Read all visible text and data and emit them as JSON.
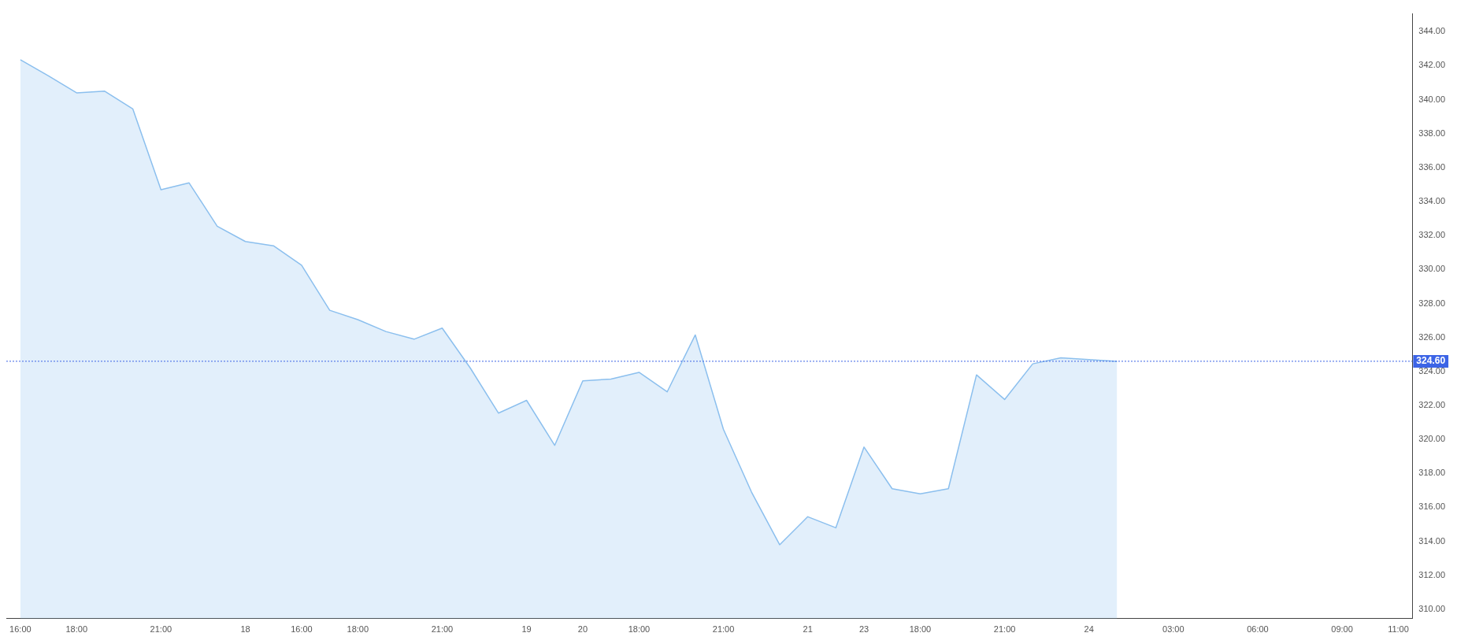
{
  "chart_data": {
    "type": "area",
    "categories": [
      "16:00",
      null,
      "18:00",
      null,
      null,
      "21:00",
      null,
      null,
      "18",
      null,
      "16:00",
      null,
      "18:00",
      null,
      null,
      "21:00",
      null,
      null,
      "19",
      null,
      "20",
      null,
      "18:00",
      null,
      null,
      "21:00",
      null,
      null,
      "21",
      null,
      "23",
      null,
      "18:00",
      null,
      null,
      "21:00",
      null,
      null,
      "24",
      null,
      null,
      "03:00",
      null,
      null,
      "06:00",
      null,
      null,
      "09:00",
      null,
      "11:00"
    ],
    "series": [
      {
        "color": "#8bbfee",
        "values": [
          342.35,
          341.4,
          340.4,
          340.5,
          339.45,
          334.7,
          335.1,
          332.55,
          331.65,
          331.4,
          330.25,
          327.6,
          327.05,
          326.35,
          325.9,
          326.55,
          324.2,
          321.55,
          322.3,
          319.65,
          323.45,
          323.55,
          323.95,
          322.8,
          326.15,
          320.6,
          316.9,
          313.8,
          315.45,
          314.8,
          319.55,
          317.1,
          316.8,
          317.1,
          323.8,
          322.35,
          324.45,
          324.8,
          324.7,
          324.6,
          null,
          null,
          null,
          null,
          null,
          null,
          null,
          null,
          null,
          null
        ]
      }
    ],
    "ylim": [
      309.45,
      345.05
    ],
    "yticks": [
      {
        "value": 310,
        "label": "310.00"
      },
      {
        "value": 312,
        "label": "312.00"
      },
      {
        "value": 314,
        "label": "314.00"
      },
      {
        "value": 316,
        "label": "316.00"
      },
      {
        "value": 318,
        "label": "318.00"
      },
      {
        "value": 320,
        "label": "320.00"
      },
      {
        "value": 322,
        "label": "322.00"
      },
      {
        "value": 324,
        "label": "324.00"
      },
      {
        "value": 326,
        "label": "326.00"
      },
      {
        "value": 328,
        "label": "328.00"
      },
      {
        "value": 330,
        "label": "330.00"
      },
      {
        "value": 332,
        "label": "332.00"
      },
      {
        "value": 334,
        "label": "334.00"
      },
      {
        "value": 336,
        "label": "336.00"
      },
      {
        "value": 338,
        "label": "338.00"
      },
      {
        "value": 340,
        "label": "340.00"
      },
      {
        "value": 342,
        "label": "342.00"
      },
      {
        "value": 344,
        "label": "344.00"
      }
    ],
    "ref_lines": [
      {
        "axis": "y",
        "value": 324.6,
        "label": "324.60",
        "color": "#3c64e6",
        "line_style": "dotted"
      }
    ],
    "grid": false,
    "legend": false,
    "marker": "none"
  }
}
